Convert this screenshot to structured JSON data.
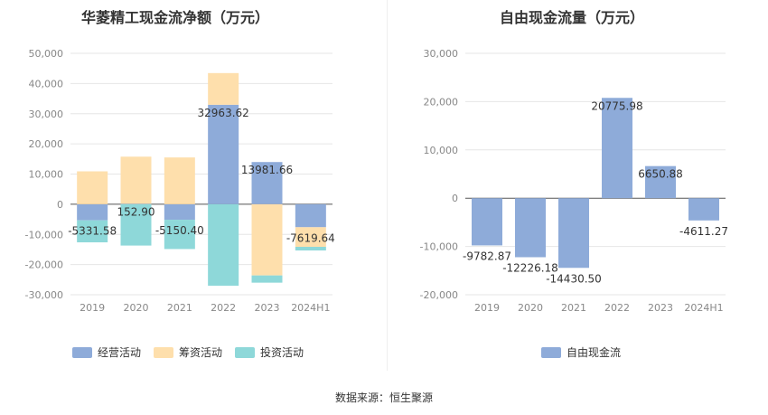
{
  "source_label": "数据来源：恒生聚源",
  "chart_data": [
    {
      "type": "bar",
      "stacked": true,
      "title": "华菱精工现金流净额（万元）",
      "categories": [
        "2019",
        "2020",
        "2021",
        "2022",
        "2023",
        "2024H1"
      ],
      "ylim": [
        -30000,
        50000
      ],
      "yticks": [
        -30000,
        -20000,
        -10000,
        0,
        10000,
        20000,
        30000,
        40000,
        50000
      ],
      "ytick_labels": [
        "-30,000",
        "-20,000",
        "-10,000",
        "0",
        "10,000",
        "20,000",
        "30,000",
        "40,000",
        "50,000"
      ],
      "grid": true,
      "legend_position": "bottom",
      "series": [
        {
          "name": "经营活动",
          "color": "#8eabd9",
          "values": [
            -5331.58,
            152.9,
            -5150.4,
            32963.62,
            13981.66,
            -7619.64
          ]
        },
        {
          "name": "筹资活动",
          "color": "#fedfac",
          "values": [
            10900,
            15600,
            15500,
            10500,
            -23600,
            -6500
          ]
        },
        {
          "name": "投资活动",
          "color": "#8ed8d9",
          "values": [
            -7300,
            -13700,
            -9700,
            -27000,
            -2400,
            -1200
          ]
        }
      ],
      "data_labels": [
        "-5331.58",
        "152.90",
        "-5150.40",
        "32963.62",
        "13981.66",
        "-7619.64"
      ]
    },
    {
      "type": "bar",
      "title": "自由现金流量（万元）",
      "categories": [
        "2019",
        "2020",
        "2021",
        "2022",
        "2023",
        "2024H1"
      ],
      "ylim": [
        -20000,
        30000
      ],
      "yticks": [
        -20000,
        -10000,
        0,
        10000,
        20000,
        30000
      ],
      "ytick_labels": [
        "-20,000",
        "-10,000",
        "0",
        "10,000",
        "20,000",
        "30,000"
      ],
      "grid": true,
      "legend_position": "bottom",
      "series": [
        {
          "name": "自由现金流",
          "color": "#8eabd9",
          "values": [
            -9782.87,
            -12226.18,
            -14430.5,
            20775.98,
            6650.88,
            -4611.27
          ]
        }
      ],
      "data_labels": [
        "-9782.87",
        "-12226.18",
        "-14430.50",
        "20775.98",
        "6650.88",
        "-4611.27"
      ]
    }
  ]
}
